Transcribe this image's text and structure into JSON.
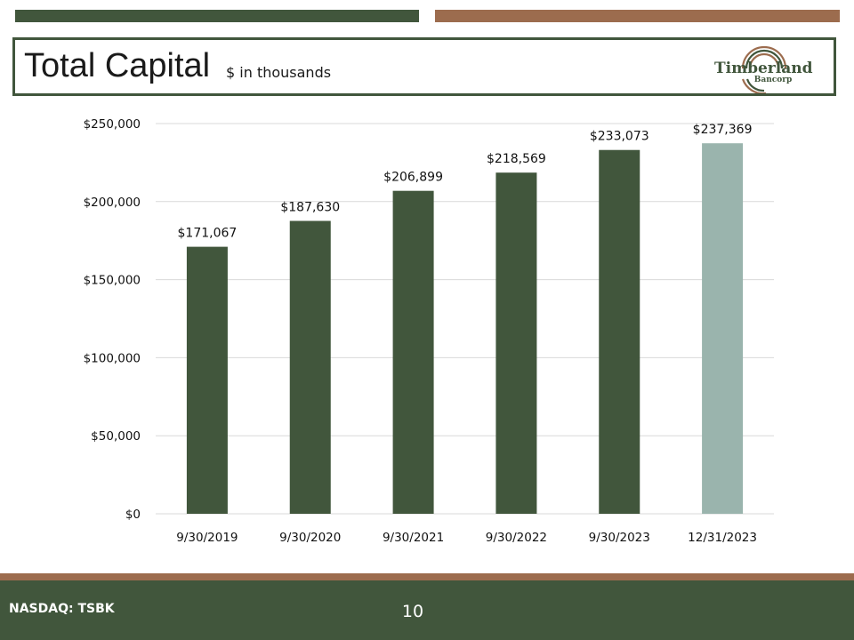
{
  "header": {
    "title": "Total Capital",
    "subtitle": "$ in thousands",
    "logo_text": "Timberland",
    "logo_sub": "Bancorp"
  },
  "colors": {
    "primary_green": "#41563c",
    "accent_brown": "#9c6c4e",
    "highlight_bar": "#9ab4ad",
    "gridline": "#d9d9d9"
  },
  "footer": {
    "ticker": "NASDAQ: TSBK",
    "page_number": "10"
  },
  "chart_data": {
    "type": "bar",
    "categories": [
      "9/30/2019",
      "9/30/2020",
      "9/30/2021",
      "9/30/2022",
      "9/30/2023",
      "12/31/2023"
    ],
    "values": [
      171067,
      187630,
      206899,
      218569,
      233073,
      237369
    ],
    "data_labels": [
      "$171,067",
      "$187,630",
      "$206,899",
      "$218,569",
      "$233,073",
      "$237,369"
    ],
    "y_ticks": [
      0,
      50000,
      100000,
      150000,
      200000,
      250000
    ],
    "y_tick_labels": [
      "$0",
      "$50,000",
      "$100,000",
      "$150,000",
      "$200,000",
      "$250,000"
    ],
    "ylim": [
      0,
      250000
    ],
    "grid": true,
    "legend": "none"
  }
}
